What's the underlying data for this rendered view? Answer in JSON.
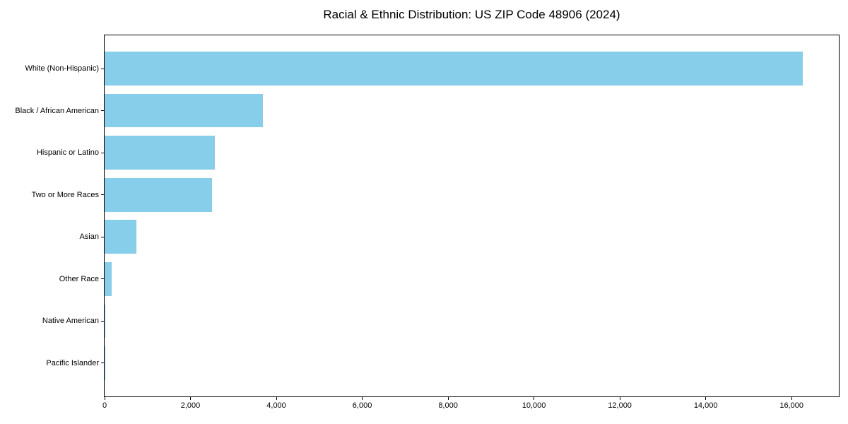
{
  "page": {
    "background_color": "#ffffff",
    "text_color": "#000000"
  },
  "chart_data": {
    "type": "bar",
    "orientation": "horizontal",
    "title": "Racial & Ethnic Distribution: US ZIP Code 48906 (2024)",
    "categories": [
      "White (Non-Hispanic)",
      "Black / African American",
      "Hispanic or Latino",
      "Two or More Races",
      "Asian",
      "Other Race",
      "Native American",
      "Pacific Islander"
    ],
    "values": [
      16260,
      3680,
      2570,
      2500,
      745,
      160,
      20,
      10
    ],
    "xlabel": "",
    "ylabel": "",
    "xlim": [
      0,
      17100
    ],
    "x_ticks": [
      0,
      2000,
      4000,
      6000,
      8000,
      10000,
      12000,
      14000,
      16000
    ],
    "x_tick_labels": [
      "0",
      "2,000",
      "4,000",
      "6,000",
      "8,000",
      "10,000",
      "12,000",
      "14,000",
      "16,000"
    ],
    "bar_color": "#87CEEB",
    "axis_color": "#000000",
    "grid": false,
    "legend": null
  }
}
